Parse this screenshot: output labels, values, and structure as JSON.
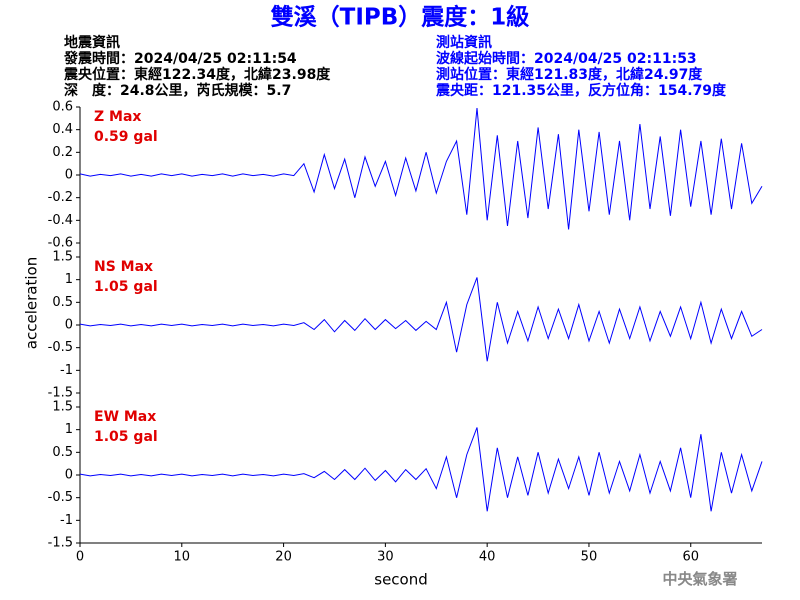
{
  "header": {
    "title": "雙溪（TIPB）震度：1級",
    "left": [
      "地震資訊",
      "發震時間：2024/04/25 02:11:54",
      "震央位置：東經122.34度，北緯23.98度",
      "深　度：24.8公里，芮氏規模：5.7"
    ],
    "right": [
      "測站資訊",
      "波線起始時間：2024/04/25 02:11:53",
      "測站位置：東經121.83度，北緯24.97度",
      "震央距：121.35公里，反方位角：154.79度"
    ],
    "ylabel": "acceleration",
    "footer": "中央氣象署"
  },
  "chart_data": [
    {
      "type": "line",
      "label": "Z Max",
      "max_label": "0.59 gal",
      "color": "#0000ff",
      "xlim": [
        0,
        67
      ],
      "ylim": [
        -0.6,
        0.6
      ],
      "yticks": [
        0.6,
        0.4,
        0.2,
        0,
        -0.2,
        -0.4,
        -0.6
      ],
      "x": [
        0,
        1,
        2,
        3,
        4,
        5,
        6,
        7,
        8,
        9,
        10,
        11,
        12,
        13,
        14,
        15,
        16,
        17,
        18,
        19,
        20,
        21,
        22,
        23,
        24,
        25,
        26,
        27,
        28,
        29,
        30,
        31,
        32,
        33,
        34,
        35,
        36,
        37,
        38,
        39,
        40,
        41,
        42,
        43,
        44,
        45,
        46,
        47,
        48,
        49,
        50,
        51,
        52,
        53,
        54,
        55,
        56,
        57,
        58,
        59,
        60,
        61,
        62,
        63,
        64,
        65,
        66,
        67
      ],
      "values": [
        0.01,
        -0.01,
        0.005,
        -0.005,
        0.01,
        -0.01,
        0.005,
        -0.01,
        0.01,
        -0.005,
        0.01,
        -0.01,
        0.005,
        -0.005,
        0.01,
        -0.01,
        0.01,
        -0.005,
        0.005,
        -0.01,
        0.01,
        -0.005,
        0.1,
        -0.15,
        0.18,
        -0.12,
        0.14,
        -0.2,
        0.16,
        -0.1,
        0.12,
        -0.18,
        0.15,
        -0.14,
        0.2,
        -0.16,
        0.12,
        0.3,
        -0.35,
        0.59,
        -0.4,
        0.35,
        -0.45,
        0.3,
        -0.38,
        0.42,
        -0.3,
        0.36,
        -0.48,
        0.4,
        -0.32,
        0.38,
        -0.35,
        0.3,
        -0.4,
        0.45,
        -0.3,
        0.34,
        -0.36,
        0.4,
        -0.28,
        0.3,
        -0.35,
        0.32,
        -0.3,
        0.28,
        -0.25,
        -0.1
      ]
    },
    {
      "type": "line",
      "label": "NS Max",
      "max_label": "1.05 gal",
      "color": "#0000ff",
      "xlim": [
        0,
        67
      ],
      "ylim": [
        -1.5,
        1.5
      ],
      "yticks": [
        1.5,
        1,
        0.5,
        0,
        -0.5,
        -1,
        -1.5
      ],
      "x": [
        0,
        1,
        2,
        3,
        4,
        5,
        6,
        7,
        8,
        9,
        10,
        11,
        12,
        13,
        14,
        15,
        16,
        17,
        18,
        19,
        20,
        21,
        22,
        23,
        24,
        25,
        26,
        27,
        28,
        29,
        30,
        31,
        32,
        33,
        34,
        35,
        36,
        37,
        38,
        39,
        40,
        41,
        42,
        43,
        44,
        45,
        46,
        47,
        48,
        49,
        50,
        51,
        52,
        53,
        54,
        55,
        56,
        57,
        58,
        59,
        60,
        61,
        62,
        63,
        64,
        65,
        66,
        67
      ],
      "values": [
        0.02,
        -0.02,
        0.01,
        -0.01,
        0.02,
        -0.02,
        0.01,
        -0.02,
        0.02,
        -0.01,
        0.02,
        -0.02,
        0.01,
        -0.01,
        0.02,
        -0.02,
        0.02,
        -0.01,
        0.01,
        -0.02,
        0.02,
        -0.01,
        0.05,
        -0.1,
        0.12,
        -0.15,
        0.1,
        -0.12,
        0.14,
        -0.1,
        0.12,
        -0.08,
        0.1,
        -0.12,
        0.08,
        -0.1,
        0.5,
        -0.6,
        0.45,
        1.05,
        -0.8,
        0.5,
        -0.4,
        0.3,
        -0.35,
        0.4,
        -0.3,
        0.35,
        -0.3,
        0.45,
        -0.35,
        0.3,
        -0.4,
        0.35,
        -0.3,
        0.4,
        -0.35,
        0.3,
        -0.25,
        0.4,
        -0.3,
        0.5,
        -0.4,
        0.35,
        -0.3,
        0.3,
        -0.25,
        -0.1
      ]
    },
    {
      "type": "line",
      "label": "EW Max",
      "max_label": "1.05 gal",
      "color": "#0000ff",
      "xlim": [
        0,
        67
      ],
      "ylim": [
        -1.5,
        1.5
      ],
      "yticks": [
        1.5,
        1,
        0.5,
        0,
        -0.5,
        -1,
        -1.5
      ],
      "xticks": [
        0,
        10,
        20,
        30,
        40,
        50,
        60
      ],
      "xlabel": "second",
      "x": [
        0,
        1,
        2,
        3,
        4,
        5,
        6,
        7,
        8,
        9,
        10,
        11,
        12,
        13,
        14,
        15,
        16,
        17,
        18,
        19,
        20,
        21,
        22,
        23,
        24,
        25,
        26,
        27,
        28,
        29,
        30,
        31,
        32,
        33,
        34,
        35,
        36,
        37,
        38,
        39,
        40,
        41,
        42,
        43,
        44,
        45,
        46,
        47,
        48,
        49,
        50,
        51,
        52,
        53,
        54,
        55,
        56,
        57,
        58,
        59,
        60,
        61,
        62,
        63,
        64,
        65,
        66,
        67
      ],
      "values": [
        0.02,
        -0.02,
        0.01,
        -0.01,
        0.02,
        -0.02,
        0.01,
        -0.02,
        0.02,
        -0.01,
        0.02,
        -0.02,
        0.01,
        -0.01,
        0.02,
        -0.02,
        0.02,
        -0.01,
        0.01,
        -0.02,
        0.02,
        -0.01,
        0.03,
        -0.06,
        0.08,
        -0.1,
        0.12,
        -0.1,
        0.15,
        -0.12,
        0.1,
        -0.15,
        0.12,
        -0.1,
        0.14,
        -0.3,
        0.4,
        -0.5,
        0.45,
        1.05,
        -0.8,
        0.6,
        -0.5,
        0.4,
        -0.45,
        0.5,
        -0.4,
        0.35,
        -0.3,
        0.4,
        -0.45,
        0.5,
        -0.4,
        0.3,
        -0.35,
        0.45,
        -0.4,
        0.3,
        -0.35,
        0.6,
        -0.5,
        0.9,
        -0.8,
        0.5,
        -0.4,
        0.45,
        -0.35,
        0.3
      ]
    }
  ]
}
